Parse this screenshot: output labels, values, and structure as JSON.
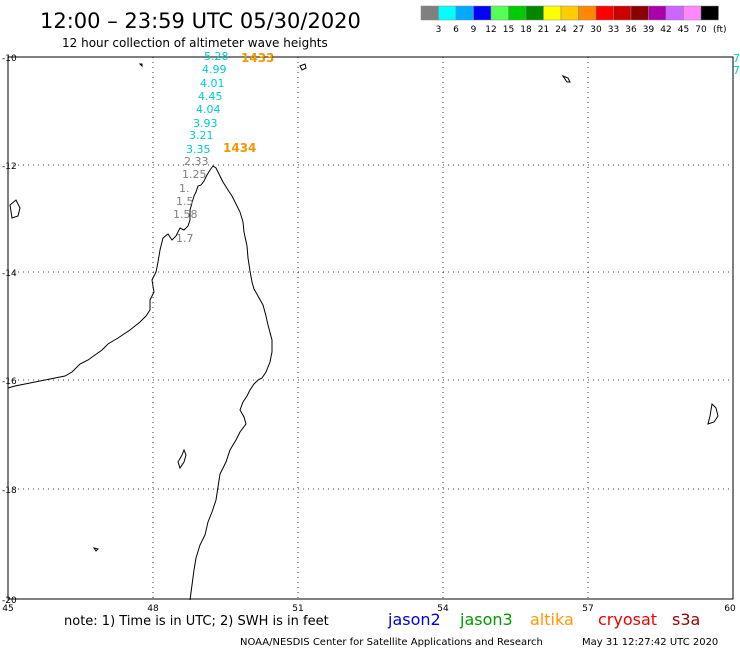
{
  "title": "12:00 – 23:59 UTC 05/30/2020",
  "subtitle": "12 hour collection of altimeter wave heights",
  "color_scale": {
    "colors": [
      "#808080",
      "#00ffff",
      "#00aaff",
      "#0000ff",
      "#55ff55",
      "#00cc00",
      "#008800",
      "#ffff00",
      "#ffcc00",
      "#ff8800",
      "#ff0000",
      "#cc0000",
      "#880000",
      "#aa00aa",
      "#cc66ff",
      "#ff88ff",
      "#000000"
    ],
    "labels": [
      "3",
      "6",
      "9",
      "12",
      "15",
      "18",
      "21",
      "24",
      "27",
      "30",
      "33",
      "36",
      "39",
      "42",
      "45",
      "70"
    ],
    "unit": "(ft)"
  },
  "axes": {
    "lat_ticks": [
      "-10",
      "-12",
      "-14",
      "-16",
      "-18",
      "-20"
    ],
    "lon_ticks": [
      "45",
      "48",
      "51",
      "54",
      "57",
      "60"
    ]
  },
  "track": {
    "times": [
      {
        "label": "1433",
        "color": "#ee9900"
      },
      {
        "label": "1434",
        "color": "#ee9900"
      }
    ],
    "values": [
      {
        "label": "5.28",
        "color": "#00cccc"
      },
      {
        "label": "4.99",
        "color": "#00cccc"
      },
      {
        "label": "4.01",
        "color": "#00cccc"
      },
      {
        "label": "4.45",
        "color": "#00cccc"
      },
      {
        "label": "4.04",
        "color": "#00cccc"
      },
      {
        "label": "3.93",
        "color": "#00cccc"
      },
      {
        "label": "3.21",
        "color": "#00cccc"
      },
      {
        "label": "3.35",
        "color": "#00cccc"
      },
      {
        "label": "2.33",
        "color": "#808080"
      },
      {
        "label": "1.25",
        "color": "#808080"
      },
      {
        "label": "1.",
        "color": "#808080"
      },
      {
        "label": "1.5",
        "color": "#808080"
      },
      {
        "label": "1.58",
        "color": "#808080"
      },
      {
        "label": "1.7",
        "color": "#808080"
      }
    ],
    "edge_values": [
      {
        "label": "7",
        "color": "#00cccc"
      },
      {
        "label": "7",
        "color": "#00cccc"
      }
    ]
  },
  "note": "note: 1) Time is in UTC; 2) SWH is in feet",
  "satellites": [
    {
      "name": "jason2",
      "color": "#0000dd"
    },
    {
      "name": "jason3",
      "color": "#009900"
    },
    {
      "name": "altika",
      "color": "#ff9900"
    },
    {
      "name": "cryosat",
      "color": "#ee0000"
    },
    {
      "name": "s3a",
      "color": "#990000"
    }
  ],
  "footer_credit": "NOAA/NESDIS Center for Satellite Applications and Research",
  "footer_timestamp": "May 31 12:27:42 UTC 2020"
}
